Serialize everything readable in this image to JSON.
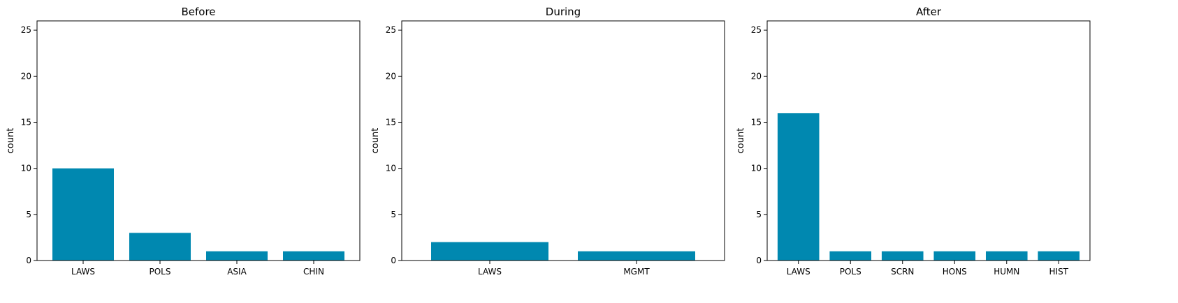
{
  "chart_data": [
    {
      "type": "bar",
      "title": "Before",
      "ylabel": "count",
      "xlabel": "",
      "categories": [
        "LAWS",
        "POLS",
        "ASIA",
        "CHIN"
      ],
      "values": [
        10,
        3,
        1,
        1
      ],
      "ylim": [
        0,
        26
      ],
      "yticks": [
        0,
        5,
        10,
        15,
        20,
        25
      ],
      "color": "#0088b0"
    },
    {
      "type": "bar",
      "title": "During",
      "ylabel": "count",
      "xlabel": "",
      "categories": [
        "LAWS",
        "MGMT"
      ],
      "values": [
        2,
        1
      ],
      "ylim": [
        0,
        26
      ],
      "yticks": [
        0,
        5,
        10,
        15,
        20,
        25
      ],
      "color": "#0088b0"
    },
    {
      "type": "bar",
      "title": "After",
      "ylabel": "count",
      "xlabel": "",
      "categories": [
        "LAWS",
        "POLS",
        "SCRN",
        "HONS",
        "HUMN",
        "HIST"
      ],
      "values": [
        16,
        1,
        1,
        1,
        1,
        1
      ],
      "ylim": [
        0,
        26
      ],
      "yticks": [
        0,
        5,
        10,
        15,
        20,
        25
      ],
      "color": "#0088b0"
    }
  ]
}
